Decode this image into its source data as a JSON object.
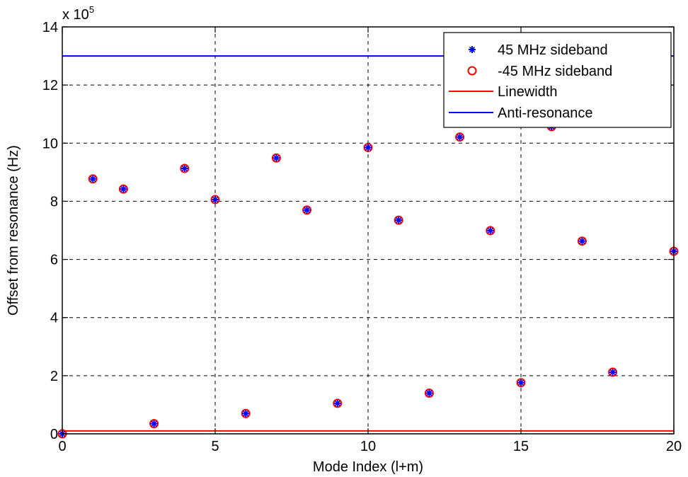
{
  "chart_data": {
    "type": "scatter",
    "xlabel": "Mode Index (l+m)",
    "ylabel": "Offset from resonance (Hz)",
    "y_multiplier": {
      "base": "x 10",
      "exponent": "5"
    },
    "xlim": [
      0,
      20
    ],
    "ylim": [
      0,
      14
    ],
    "xticks": [
      0,
      5,
      10,
      15,
      20
    ],
    "yticks": [
      0,
      2,
      4,
      6,
      8,
      10,
      12,
      14
    ],
    "grid": true,
    "legend_position": "top-right",
    "series": [
      {
        "name": "45 MHz sideband",
        "kind": "points",
        "marker": "asterisk",
        "color": "#0000ff",
        "x": [
          0,
          1,
          2,
          3,
          4,
          5,
          6,
          7,
          8,
          9,
          10,
          11,
          12,
          13,
          14,
          15,
          16,
          17,
          18,
          20
        ],
        "y": [
          0.0,
          8.77,
          8.42,
          0.35,
          9.13,
          8.06,
          0.7,
          9.49,
          7.7,
          1.05,
          9.85,
          7.35,
          1.4,
          10.21,
          6.99,
          1.76,
          10.57,
          6.63,
          2.12,
          6.28
        ]
      },
      {
        "name": "-45 MHz sideband",
        "kind": "points",
        "marker": "circle",
        "color": "#ff0000",
        "x": [
          0,
          1,
          2,
          3,
          4,
          5,
          6,
          7,
          8,
          9,
          10,
          11,
          12,
          13,
          14,
          15,
          16,
          17,
          18,
          20
        ],
        "y": [
          0.0,
          8.77,
          8.42,
          0.35,
          9.13,
          8.06,
          0.7,
          9.49,
          7.7,
          1.05,
          9.85,
          7.35,
          1.4,
          10.21,
          6.99,
          1.76,
          10.57,
          6.63,
          2.12,
          6.28
        ]
      },
      {
        "name": "Linewidth",
        "kind": "hline",
        "color": "#ff0000",
        "y": 0.1
      },
      {
        "name": "Anti-resonance",
        "kind": "hline",
        "color": "#0000ff",
        "y": 13.0
      }
    ]
  }
}
